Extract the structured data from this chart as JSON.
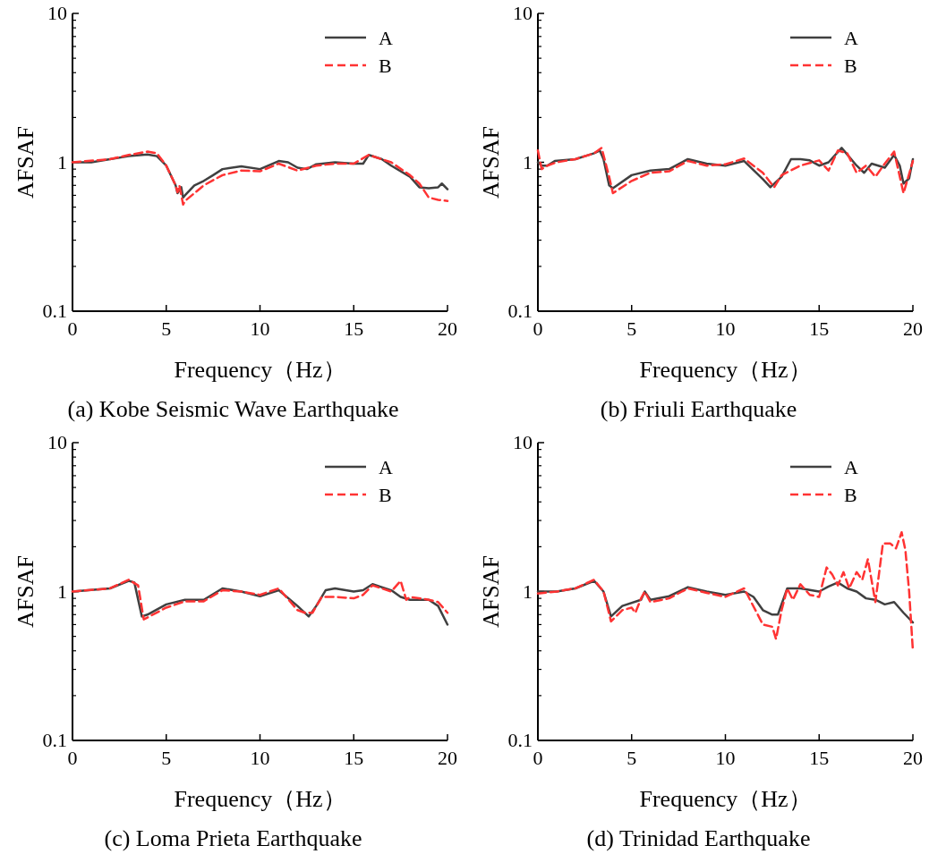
{
  "chart_data": [
    {
      "type": "line",
      "title": "(a) Kobe Seismic Wave Earthquake",
      "xlabel": "Frequency（Hz）",
      "ylabel": "AFSAF",
      "xlim": [
        0,
        20
      ],
      "xticks": [
        0,
        5,
        10,
        15,
        20
      ],
      "ylim": [
        0.1,
        10
      ],
      "yticks": [
        0.1,
        1,
        10
      ],
      "log": "y",
      "grid": false,
      "legend": "top right",
      "series": [
        {
          "name": "A",
          "color": "#404040",
          "line_style": "solid",
          "x": [
            0,
            1,
            2,
            3,
            4,
            4.5,
            5,
            5.5,
            5.6,
            5.8,
            5.9,
            6,
            6.5,
            7,
            7.5,
            8,
            9,
            10,
            11,
            11.5,
            12,
            12.5,
            13,
            14,
            15,
            15.5,
            15.8,
            16.5,
            17,
            18,
            18.5,
            19,
            19.5,
            19.7,
            20
          ],
          "values": [
            1.0,
            1.0,
            1.05,
            1.1,
            1.13,
            1.1,
            0.95,
            0.7,
            0.62,
            0.68,
            0.58,
            0.6,
            0.7,
            0.75,
            0.82,
            0.9,
            0.94,
            0.9,
            1.02,
            1.0,
            0.92,
            0.9,
            0.97,
            1.0,
            0.98,
            0.98,
            1.12,
            1.05,
            0.95,
            0.8,
            0.68,
            0.67,
            0.68,
            0.72,
            0.66
          ]
        },
        {
          "name": "B",
          "color": "#ff3333",
          "line_style": "dashed",
          "x": [
            0,
            2,
            3,
            4,
            4.5,
            5,
            5.5,
            5.6,
            5.7,
            5.9,
            6,
            6.5,
            7,
            8,
            9,
            10,
            11,
            12,
            13,
            14,
            15,
            15.8,
            17,
            18,
            18.5,
            19,
            19.5,
            20
          ],
          "values": [
            1.0,
            1.05,
            1.12,
            1.18,
            1.15,
            0.95,
            0.7,
            0.63,
            0.7,
            0.52,
            0.55,
            0.62,
            0.7,
            0.82,
            0.88,
            0.87,
            0.98,
            0.88,
            0.95,
            0.98,
            0.98,
            1.12,
            1.0,
            0.82,
            0.72,
            0.58,
            0.56,
            0.55
          ]
        }
      ]
    },
    {
      "type": "line",
      "title": "(b) Friuli Earthquake",
      "xlabel": "Frequency（Hz）",
      "ylabel": "AFSAF",
      "xlim": [
        0,
        20
      ],
      "xticks": [
        0,
        5,
        10,
        15,
        20
      ],
      "ylim": [
        0.1,
        10
      ],
      "yticks": [
        0.1,
        1,
        10
      ],
      "log": "y",
      "grid": false,
      "legend": "top right",
      "series": [
        {
          "name": "A",
          "color": "#404040",
          "line_style": "solid",
          "x": [
            0,
            0.2,
            0.5,
            0.9,
            2,
            3,
            3.3,
            3.5,
            3.8,
            4,
            5,
            6,
            7,
            8,
            9,
            10,
            11,
            12,
            12.4,
            13,
            13.5,
            14,
            14.5,
            15,
            15.5,
            16.2,
            17,
            17.4,
            17.8,
            18.5,
            19,
            19.3,
            19.5,
            19.8,
            20
          ],
          "values": [
            1.0,
            0.95,
            0.95,
            1.02,
            1.05,
            1.15,
            1.2,
            1.05,
            0.7,
            0.67,
            0.82,
            0.88,
            0.9,
            1.05,
            0.98,
            0.95,
            1.02,
            0.77,
            0.68,
            0.8,
            1.05,
            1.05,
            1.03,
            0.95,
            1.0,
            1.25,
            0.95,
            0.85,
            0.98,
            0.92,
            1.12,
            0.95,
            0.72,
            0.78,
            1.05
          ]
        },
        {
          "name": "B",
          "color": "#ff3333",
          "line_style": "dashed",
          "x": [
            0,
            0.2,
            0.5,
            1,
            2,
            3,
            3.4,
            3.8,
            4,
            5,
            6,
            7,
            8,
            9,
            10,
            11,
            12,
            12.6,
            13,
            14,
            15,
            15.5,
            16,
            16.5,
            17,
            17.5,
            18,
            18.5,
            19,
            19.5,
            20
          ],
          "values": [
            1.2,
            0.9,
            0.95,
            1.0,
            1.05,
            1.15,
            1.25,
            0.8,
            0.62,
            0.75,
            0.85,
            0.87,
            1.02,
            0.95,
            0.97,
            1.06,
            0.85,
            0.68,
            0.82,
            0.95,
            1.03,
            0.88,
            1.2,
            1.15,
            0.85,
            0.95,
            0.8,
            0.98,
            1.18,
            0.62,
            1.02
          ]
        }
      ]
    },
    {
      "type": "line",
      "title": "(c) Loma Prieta Earthquake",
      "xlabel": "Frequency（Hz）",
      "ylabel": "AFSAF",
      "xlim": [
        0,
        20
      ],
      "xticks": [
        0,
        5,
        10,
        15,
        20
      ],
      "ylim": [
        0.1,
        10
      ],
      "yticks": [
        0.1,
        1,
        10
      ],
      "log": "y",
      "grid": false,
      "legend": "top right",
      "series": [
        {
          "name": "A",
          "color": "#404040",
          "line_style": "solid",
          "x": [
            0,
            2,
            3,
            3.3,
            3.7,
            4,
            5,
            6,
            7,
            8,
            9,
            10,
            11,
            12,
            12.6,
            13,
            13.5,
            14,
            15,
            15.5,
            16,
            17,
            17.5,
            18,
            19,
            19.5,
            20
          ],
          "values": [
            1.0,
            1.05,
            1.18,
            1.15,
            0.68,
            0.7,
            0.82,
            0.88,
            0.88,
            1.05,
            1.0,
            0.93,
            1.02,
            0.8,
            0.68,
            0.8,
            1.02,
            1.05,
            1.0,
            1.02,
            1.12,
            1.02,
            0.92,
            0.88,
            0.88,
            0.8,
            0.6
          ]
        },
        {
          "name": "B",
          "color": "#ff3333",
          "line_style": "dashed",
          "x": [
            0,
            2,
            3,
            3.5,
            3.8,
            5,
            6,
            7,
            8,
            9,
            10,
            11,
            12,
            12.4,
            12.8,
            13.3,
            14,
            15,
            15.5,
            16,
            17,
            17.5,
            17.8,
            18,
            19,
            19.5,
            20
          ],
          "values": [
            1.0,
            1.05,
            1.2,
            1.1,
            0.65,
            0.78,
            0.86,
            0.86,
            1.02,
            1.0,
            0.95,
            1.05,
            0.75,
            0.72,
            0.72,
            0.92,
            0.92,
            0.9,
            0.95,
            1.1,
            1.0,
            1.18,
            0.88,
            0.92,
            0.88,
            0.85,
            0.72
          ]
        }
      ]
    },
    {
      "type": "line",
      "title": "(d) Trinidad Earthquake",
      "xlabel": "Frequency（Hz）",
      "ylabel": "AFSAF",
      "xlim": [
        0,
        20
      ],
      "xticks": [
        0,
        5,
        10,
        15,
        20
      ],
      "ylim": [
        0.1,
        10
      ],
      "yticks": [
        0.1,
        1,
        10
      ],
      "log": "y",
      "grid": false,
      "legend": "top right",
      "series": [
        {
          "name": "A",
          "color": "#404040",
          "line_style": "solid",
          "x": [
            0,
            1,
            2,
            3,
            3.5,
            3.9,
            4.5,
            5.5,
            5.7,
            6,
            7,
            8,
            9,
            10,
            11,
            11.5,
            12,
            12.5,
            12.8,
            13.3,
            14,
            15,
            15.5,
            16,
            16.5,
            17,
            17.5,
            18,
            18.5,
            19,
            19.5,
            20
          ],
          "values": [
            1.0,
            1.0,
            1.05,
            1.18,
            1.0,
            0.68,
            0.8,
            0.88,
            1.0,
            0.88,
            0.93,
            1.07,
            1.0,
            0.95,
            1.0,
            0.92,
            0.75,
            0.7,
            0.7,
            1.05,
            1.05,
            1.0,
            1.08,
            1.15,
            1.05,
            1.0,
            0.9,
            0.88,
            0.82,
            0.85,
            0.72,
            0.62
          ]
        },
        {
          "name": "B",
          "color": "#ff3333",
          "line_style": "dashed",
          "x": [
            0,
            1,
            2,
            3,
            3.5,
            3.9,
            4.5,
            5,
            5.2,
            5.5,
            5.7,
            6,
            7,
            8,
            9,
            10,
            11,
            12,
            12.5,
            12.7,
            13,
            13.3,
            13.6,
            14,
            14.5,
            15,
            15.4,
            15.7,
            16,
            16.3,
            16.6,
            17,
            17.3,
            17.6,
            18,
            18.4,
            18.8,
            19.1,
            19.4,
            19.6,
            19.8,
            20
          ],
          "values": [
            0.97,
            1.0,
            1.05,
            1.2,
            1.0,
            0.63,
            0.75,
            0.78,
            0.72,
            0.9,
            1.0,
            0.85,
            0.9,
            1.05,
            0.98,
            0.92,
            1.05,
            0.6,
            0.58,
            0.48,
            0.75,
            1.05,
            0.88,
            1.12,
            0.95,
            0.92,
            1.45,
            1.3,
            1.1,
            1.35,
            1.05,
            1.35,
            1.2,
            1.65,
            0.85,
            2.1,
            2.1,
            1.95,
            2.5,
            1.9,
            1.0,
            0.4
          ]
        }
      ]
    }
  ]
}
